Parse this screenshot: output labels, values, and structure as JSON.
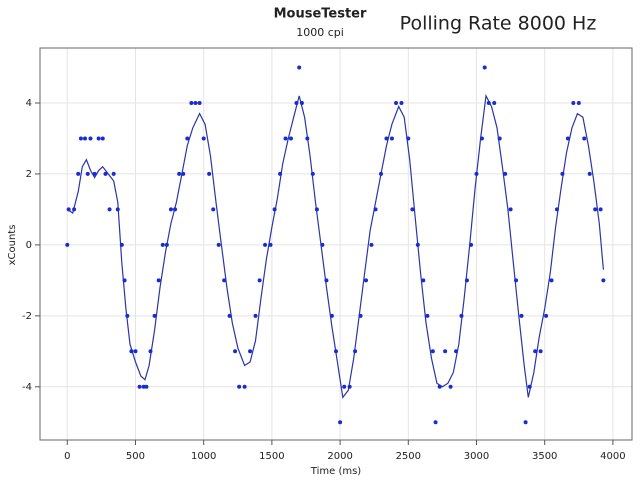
{
  "chart_data": {
    "type": "scatter",
    "title": "MouseTester",
    "subtitle": "1000 cpi",
    "annotation": "Polling Rate 8000 Hz",
    "xlabel": "Time (ms)",
    "ylabel": "xCounts",
    "xlim": [
      -200,
      4140
    ],
    "ylim": [
      -5.5,
      5.55
    ],
    "xticks": [
      0,
      500,
      1000,
      1500,
      2000,
      2500,
      3000,
      3500,
      4000
    ],
    "yticks": [
      -4,
      -2,
      0,
      2,
      4
    ],
    "grid": true,
    "series": [
      {
        "style": "line",
        "color": "#2a35a8",
        "x": [
          0,
          40,
          80,
          110,
          140,
          170,
          200,
          230,
          260,
          300,
          340,
          370,
          400,
          430,
          460,
          500,
          540,
          570,
          600,
          640,
          680,
          720,
          760,
          800,
          840,
          880,
          920,
          970,
          1010,
          1050,
          1090,
          1130,
          1170,
          1210,
          1250,
          1300,
          1340,
          1380,
          1420,
          1460,
          1500,
          1540,
          1580,
          1620,
          1660,
          1700,
          1740,
          1780,
          1820,
          1860,
          1900,
          1940,
          1980,
          2020,
          2060,
          2100,
          2140,
          2180,
          2220,
          2260,
          2300,
          2340,
          2380,
          2430,
          2470,
          2510,
          2550,
          2590,
          2630,
          2670,
          2710,
          2750,
          2790,
          2830,
          2870,
          2910,
          2950,
          2990,
          3030,
          3070,
          3110,
          3150,
          3190,
          3230,
          3270,
          3310,
          3350,
          3380,
          3420,
          3460,
          3500,
          3540,
          3580,
          3620,
          3660,
          3700,
          3740,
          3780,
          3820,
          3860,
          3900,
          3930
        ],
        "values": [
          1,
          0.9,
          1.5,
          2.2,
          2.4,
          2.1,
          1.9,
          2.1,
          2.2,
          2.0,
          1.8,
          1.2,
          -0.5,
          -1.8,
          -2.8,
          -3.3,
          -3.7,
          -3.8,
          -3.4,
          -2.4,
          -1.2,
          -0.2,
          0.6,
          1.2,
          2.0,
          2.8,
          3.3,
          3.7,
          3.4,
          2.5,
          1.2,
          0,
          -1.2,
          -2.2,
          -2.9,
          -3.4,
          -3.3,
          -2.7,
          -1.5,
          -0.4,
          0.5,
          1.3,
          2.3,
          3.0,
          3.6,
          4.2,
          3.6,
          2.5,
          1.2,
          0,
          -1.2,
          -2.3,
          -3.3,
          -4.3,
          -4.1,
          -3.2,
          -2.0,
          -0.8,
          0.4,
          1.2,
          2.0,
          2.8,
          3.4,
          3.9,
          3.6,
          2.4,
          0.8,
          -0.8,
          -2.2,
          -3.2,
          -3.9,
          -4.0,
          -3.9,
          -3.6,
          -2.8,
          -1.5,
          0,
          1.6,
          3.0,
          4.2,
          3.9,
          3.3,
          2.2,
          1.0,
          -0.5,
          -2.0,
          -3.4,
          -4.3,
          -3.6,
          -2.6,
          -1.8,
          -0.8,
          0.5,
          1.6,
          2.6,
          3.3,
          3.7,
          3.6,
          2.8,
          1.8,
          0.6,
          -0.7
        ]
      },
      {
        "style": "points",
        "color": "#1a2bd0",
        "x": [
          0,
          10,
          50,
          80,
          100,
          130,
          150,
          170,
          200,
          230,
          260,
          280,
          310,
          340,
          370,
          400,
          420,
          440,
          470,
          500,
          530,
          560,
          580,
          610,
          640,
          670,
          700,
          730,
          760,
          790,
          820,
          850,
          880,
          910,
          940,
          970,
          1000,
          1040,
          1070,
          1110,
          1150,
          1190,
          1230,
          1260,
          1300,
          1340,
          1380,
          1410,
          1450,
          1490,
          1520,
          1560,
          1600,
          1640,
          1680,
          1700,
          1720,
          1760,
          1800,
          1830,
          1870,
          1900,
          1940,
          1970,
          2000,
          2030,
          2070,
          2110,
          2150,
          2190,
          2230,
          2260,
          2300,
          2340,
          2380,
          2410,
          2450,
          2500,
          2530,
          2570,
          2610,
          2640,
          2680,
          2700,
          2730,
          2770,
          2810,
          2850,
          2890,
          2930,
          2960,
          3000,
          3040,
          3060,
          3090,
          3130,
          3170,
          3210,
          3250,
          3290,
          3330,
          3360,
          3390,
          3430,
          3470,
          3510,
          3550,
          3590,
          3630,
          3670,
          3710,
          3750,
          3790,
          3830,
          3870,
          3910,
          3930
        ],
        "values": [
          0,
          1,
          1,
          2,
          3,
          3,
          2,
          3,
          2,
          3,
          3,
          2,
          1,
          2,
          1,
          0,
          -1,
          -2,
          -3,
          -3,
          -4,
          -4,
          -4,
          -3,
          -2,
          -1,
          0,
          0,
          1,
          1,
          2,
          2,
          3,
          4,
          4,
          4,
          3,
          2,
          1,
          0,
          -1,
          -2,
          -3,
          -4,
          -4,
          -3,
          -2,
          -1,
          0,
          0,
          1,
          2,
          3,
          3,
          4,
          5,
          4,
          3,
          2,
          1,
          0,
          -1,
          -2,
          -3,
          -5,
          -4,
          -4,
          -3,
          -2,
          -1,
          0,
          1,
          2,
          3,
          3,
          4,
          4,
          3,
          1,
          0,
          -1,
          -2,
          -3,
          -5,
          -4,
          -3,
          -4,
          -3,
          -2,
          -1,
          0,
          2,
          3,
          5,
          4,
          4,
          3,
          2,
          1,
          -1,
          -2,
          -5,
          -4,
          -3,
          -3,
          -2,
          -1,
          1,
          2,
          3,
          4,
          4,
          3,
          2,
          1,
          1,
          -1
        ]
      }
    ]
  }
}
